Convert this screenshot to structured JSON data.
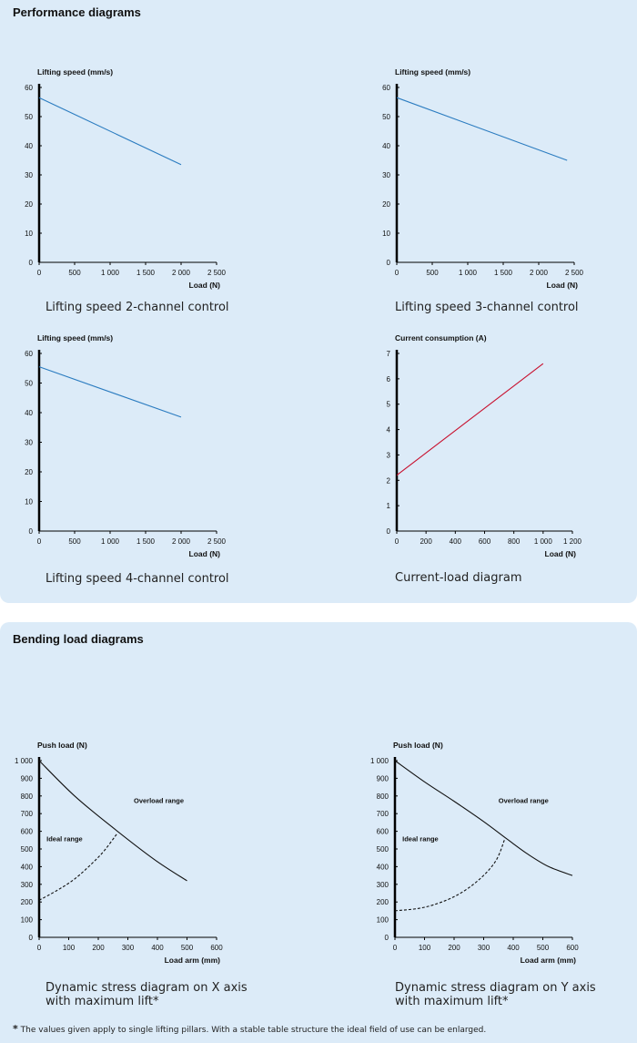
{
  "sections": {
    "performance_title": "Performance diagrams",
    "bending_title": "Bending load diagrams"
  },
  "captions": [
    "Lifting speed 2-channel control",
    "Lifting speed 3-channel control",
    "Lifting speed 4-channel control",
    "Current-load diagram",
    "Dynamic stress diagram on X axis\nwith maximum lift*",
    "Dynamic stress diagram on Y axis\nwith maximum lift*"
  ],
  "footnote": {
    "star": "*",
    "text": "The values given apply to single lifting pillars. With a stable table structure the ideal field of use can be enlarged."
  },
  "colors": {
    "panel": "#dcebf8",
    "speed_line": "#2b7cc0",
    "current_line": "#c8102e",
    "load_line": "#111111"
  },
  "chart_data": [
    {
      "type": "line",
      "ylabel": "Lifting speed (mm/s)",
      "xlabel": "Load (N)",
      "xlim": [
        0,
        2500
      ],
      "ylim": [
        0,
        60
      ],
      "xticks": [
        0,
        500,
        1000,
        1500,
        2000,
        2500
      ],
      "xtick_labels": [
        "0",
        "500",
        "1 000",
        "1 500",
        "2 000",
        "2 500"
      ],
      "yticks": [
        0,
        10,
        20,
        30,
        40,
        50,
        60
      ],
      "ytick_labels": [
        "0",
        "10",
        "20",
        "30",
        "40",
        "50",
        "60"
      ],
      "grid": false,
      "series": [
        {
          "color": "#2b7cc0",
          "x": [
            0,
            2000
          ],
          "y": [
            56.5,
            33.5
          ]
        }
      ]
    },
    {
      "type": "line",
      "ylabel": "Lifting speed (mm/s)",
      "xlabel": "Load (N)",
      "xlim": [
        0,
        2500
      ],
      "ylim": [
        0,
        60
      ],
      "xticks": [
        0,
        500,
        1000,
        1500,
        2000,
        2500
      ],
      "xtick_labels": [
        "0",
        "500",
        "1 000",
        "1 500",
        "2 000",
        "2 500"
      ],
      "yticks": [
        0,
        10,
        20,
        30,
        40,
        50,
        60
      ],
      "ytick_labels": [
        "0",
        "10",
        "20",
        "30",
        "40",
        "50",
        "60"
      ],
      "grid": false,
      "series": [
        {
          "color": "#2b7cc0",
          "x": [
            0,
            2400
          ],
          "y": [
            56.5,
            35
          ]
        }
      ]
    },
    {
      "type": "line",
      "ylabel": "Lifting speed (mm/s)",
      "xlabel": "Load (N)",
      "xlim": [
        0,
        2500
      ],
      "ylim": [
        0,
        60
      ],
      "xticks": [
        0,
        500,
        1000,
        1500,
        2000,
        2500
      ],
      "xtick_labels": [
        "0",
        "500",
        "1 000",
        "1 500",
        "2 000",
        "2 500"
      ],
      "yticks": [
        0,
        10,
        20,
        30,
        40,
        50,
        60
      ],
      "ytick_labels": [
        "0",
        "10",
        "20",
        "30",
        "40",
        "50",
        "60"
      ],
      "grid": false,
      "series": [
        {
          "color": "#2b7cc0",
          "x": [
            0,
            2000
          ],
          "y": [
            55.5,
            38.5
          ]
        }
      ]
    },
    {
      "type": "line",
      "ylabel": "Current consumption (A)",
      "xlabel": "Load (N)",
      "xlim": [
        0,
        1200
      ],
      "ylim": [
        0,
        7
      ],
      "xticks": [
        0,
        200,
        400,
        600,
        800,
        1000,
        1200
      ],
      "xtick_labels": [
        "0",
        "200",
        "400",
        "600",
        "800",
        "1 000",
        "1 200"
      ],
      "yticks": [
        0,
        1,
        2,
        3,
        4,
        5,
        6,
        7
      ],
      "ytick_labels": [
        "0",
        "1",
        "2",
        "3",
        "4",
        "5",
        "6",
        "7"
      ],
      "grid": false,
      "series": [
        {
          "color": "#c8102e",
          "x": [
            0,
            1000
          ],
          "y": [
            2.2,
            6.6
          ]
        }
      ]
    },
    {
      "type": "line",
      "ylabel": "Push load (N)",
      "xlabel": "Load arm (mm)",
      "xlim": [
        0,
        600
      ],
      "ylim": [
        0,
        1000
      ],
      "xticks": [
        0,
        100,
        200,
        300,
        400,
        500,
        600
      ],
      "xtick_labels": [
        "0",
        "100",
        "200",
        "300",
        "400",
        "500",
        "600"
      ],
      "yticks": [
        0,
        100,
        200,
        300,
        400,
        500,
        600,
        700,
        800,
        900,
        1000
      ],
      "ytick_labels": [
        "0",
        "100",
        "200",
        "300",
        "400",
        "500",
        "600",
        "700",
        "800",
        "900",
        "1 000"
      ],
      "grid": false,
      "annotations": [
        {
          "text": "Overload range",
          "x": 320,
          "y": 760
        },
        {
          "text": "Ideal range",
          "x": 25,
          "y": 545
        }
      ],
      "series": [
        {
          "color": "#111111",
          "style": "solid",
          "x": [
            0,
            120,
            250,
            390,
            500
          ],
          "y": [
            1000,
            800,
            620,
            440,
            320
          ]
        },
        {
          "color": "#111111",
          "style": "dashed",
          "x": [
            0,
            60,
            120,
            180,
            220,
            265
          ],
          "y": [
            210,
            265,
            330,
            420,
            490,
            590
          ]
        }
      ]
    },
    {
      "type": "line",
      "ylabel": "Push load (N)",
      "xlabel": "Load arm (mm)",
      "xlim": [
        0,
        600
      ],
      "ylim": [
        0,
        1000
      ],
      "xticks": [
        0,
        100,
        200,
        300,
        400,
        500,
        600
      ],
      "xtick_labels": [
        "0",
        "100",
        "200",
        "300",
        "400",
        "500",
        "600"
      ],
      "yticks": [
        0,
        100,
        200,
        300,
        400,
        500,
        600,
        700,
        800,
        900,
        1000
      ],
      "ytick_labels": [
        "0",
        "100",
        "200",
        "300",
        "400",
        "500",
        "600",
        "700",
        "800",
        "900",
        "1 000"
      ],
      "grid": false,
      "annotations": [
        {
          "text": "Overload range",
          "x": 350,
          "y": 760
        },
        {
          "text": "Ideal range",
          "x": 25,
          "y": 545
        }
      ],
      "series": [
        {
          "color": "#111111",
          "style": "solid",
          "x": [
            0,
            100,
            200,
            300,
            380,
            450,
            520,
            600
          ],
          "y": [
            1000,
            880,
            770,
            655,
            555,
            470,
            400,
            350
          ]
        },
        {
          "color": "#111111",
          "style": "dashed",
          "x": [
            0,
            100,
            200,
            280,
            340,
            370
          ],
          "y": [
            150,
            170,
            230,
            320,
            430,
            550
          ]
        }
      ]
    }
  ]
}
